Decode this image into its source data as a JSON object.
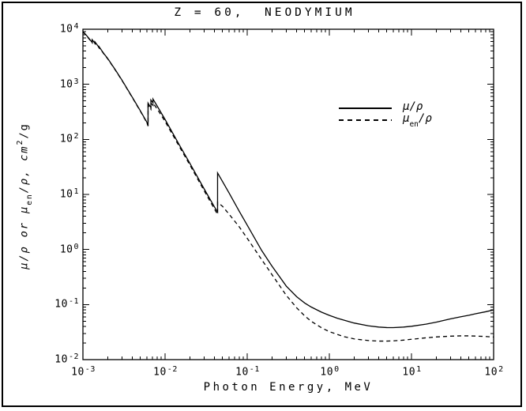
{
  "window": {
    "background": "#ffffff",
    "border_color": "#000000",
    "curve_color": "#000000"
  },
  "title": "Z = 60,  NEODYMIUM",
  "axes": {
    "x": {
      "label": "Photon Energy, MeV",
      "tick_exponents": [
        -3,
        -2,
        -1,
        0,
        1,
        2
      ]
    },
    "y": {
      "label_parts": {
        "p1": "μ/ρ or μ",
        "sub": "en",
        "p2": "/ρ, cm",
        "sup": "2",
        "p3": "/g"
      },
      "tick_exponents": [
        4,
        3,
        2,
        1,
        0,
        -1,
        -2
      ]
    }
  },
  "legend": {
    "items": [
      {
        "line_style": "solid",
        "mu": "μ",
        "sub": "",
        "rest": "/ρ"
      },
      {
        "line_style": "dashed",
        "mu": "μ",
        "sub": "en",
        "rest": "/ρ"
      }
    ]
  },
  "chart_data": {
    "type": "line",
    "title": "Z = 60,  NEODYMIUM",
    "xlabel": "Photon Energy, MeV",
    "ylabel": "μ/ρ or μen/ρ, cm²/g",
    "x_scale": "log",
    "y_scale": "log",
    "xlim": [
      0.001,
      100
    ],
    "ylim": [
      0.01,
      10000
    ],
    "grid": false,
    "legend_position": "inside upper right",
    "series": [
      {
        "name": "μ/ρ",
        "style": "solid",
        "points": [
          [
            0.001,
            9100
          ],
          [
            0.0011,
            7800
          ],
          [
            0.0012,
            6650
          ],
          [
            0.001297,
            5750
          ],
          [
            0.001297,
            6450
          ],
          [
            0.0014,
            5550
          ],
          [
            0.0014,
            5900
          ],
          [
            0.001575,
            4650
          ],
          [
            0.001575,
            4800
          ],
          [
            0.0018,
            3600
          ],
          [
            0.002,
            2950
          ],
          [
            0.0025,
            1800
          ],
          [
            0.003,
            1180
          ],
          [
            0.004,
            580
          ],
          [
            0.005,
            330
          ],
          [
            0.006,
            205
          ],
          [
            0.006208,
            178
          ],
          [
            0.006208,
            455
          ],
          [
            0.0065,
            405
          ],
          [
            0.006721,
            382
          ],
          [
            0.006721,
            520
          ],
          [
            0.007,
            478
          ],
          [
            0.007126,
            462
          ],
          [
            0.007126,
            540
          ],
          [
            0.008,
            405
          ],
          [
            0.01,
            230
          ],
          [
            0.015,
            78
          ],
          [
            0.02,
            37
          ],
          [
            0.03,
            12.5
          ],
          [
            0.04,
            5.9
          ],
          [
            0.04357,
            4.8
          ],
          [
            0.04357,
            24.6
          ],
          [
            0.05,
            17.2
          ],
          [
            0.06,
            10.7
          ],
          [
            0.08,
            4.95
          ],
          [
            0.1,
            2.77
          ],
          [
            0.15,
            0.96
          ],
          [
            0.2,
            0.5
          ],
          [
            0.3,
            0.215
          ],
          [
            0.4,
            0.139
          ],
          [
            0.5,
            0.107
          ],
          [
            0.6,
            0.0904
          ],
          [
            0.8,
            0.073
          ],
          [
            1.0,
            0.0637
          ],
          [
            1.25,
            0.0565
          ],
          [
            1.5,
            0.0521
          ],
          [
            2.0,
            0.0462
          ],
          [
            3.0,
            0.0411
          ],
          [
            4.0,
            0.039
          ],
          [
            5.0,
            0.0382
          ],
          [
            6.0,
            0.0381
          ],
          [
            8.0,
            0.039
          ],
          [
            10,
            0.0403
          ],
          [
            15,
            0.0441
          ],
          [
            20,
            0.0478
          ],
          [
            30,
            0.055
          ],
          [
            40,
            0.06
          ],
          [
            50,
            0.064
          ],
          [
            60,
            0.068
          ],
          [
            80,
            0.074
          ],
          [
            100,
            0.08
          ]
        ]
      },
      {
        "name": "μen/ρ",
        "style": "dashed",
        "points": [
          [
            0.001,
            8950
          ],
          [
            0.0011,
            7700
          ],
          [
            0.0012,
            6550
          ],
          [
            0.001297,
            5680
          ],
          [
            0.001297,
            6350
          ],
          [
            0.0014,
            5480
          ],
          [
            0.0014,
            5820
          ],
          [
            0.001575,
            4580
          ],
          [
            0.001575,
            4720
          ],
          [
            0.0018,
            3550
          ],
          [
            0.002,
            2910
          ],
          [
            0.0025,
            1780
          ],
          [
            0.003,
            1165
          ],
          [
            0.004,
            572
          ],
          [
            0.005,
            325
          ],
          [
            0.006,
            201
          ],
          [
            0.006208,
            174
          ],
          [
            0.006208,
            415
          ],
          [
            0.0065,
            372
          ],
          [
            0.006721,
            350
          ],
          [
            0.006721,
            460
          ],
          [
            0.007,
            428
          ],
          [
            0.007126,
            415
          ],
          [
            0.007126,
            455
          ],
          [
            0.008,
            360
          ],
          [
            0.01,
            212
          ],
          [
            0.015,
            73
          ],
          [
            0.02,
            34.5
          ],
          [
            0.03,
            11.6
          ],
          [
            0.04,
            5.4
          ],
          [
            0.04357,
            4.35
          ],
          [
            0.04357,
            7.2
          ],
          [
            0.05,
            6.1
          ],
          [
            0.06,
            4.4
          ],
          [
            0.08,
            2.58
          ],
          [
            0.1,
            1.6
          ],
          [
            0.15,
            0.655
          ],
          [
            0.2,
            0.351
          ],
          [
            0.3,
            0.146
          ],
          [
            0.4,
            0.0874
          ],
          [
            0.5,
            0.0625
          ],
          [
            0.6,
            0.0498
          ],
          [
            0.8,
            0.038
          ],
          [
            1.0,
            0.0322
          ],
          [
            1.5,
            0.0262
          ],
          [
            2.0,
            0.0238
          ],
          [
            3.0,
            0.0222
          ],
          [
            4.0,
            0.0217
          ],
          [
            5.0,
            0.0217
          ],
          [
            6.0,
            0.0219
          ],
          [
            8.0,
            0.0226
          ],
          [
            10,
            0.0234
          ],
          [
            15,
            0.0249
          ],
          [
            20,
            0.0258
          ],
          [
            30,
            0.0267
          ],
          [
            40,
            0.027
          ],
          [
            50,
            0.027
          ],
          [
            60,
            0.0268
          ],
          [
            80,
            0.0263
          ],
          [
            100,
            0.0257
          ]
        ]
      }
    ]
  }
}
